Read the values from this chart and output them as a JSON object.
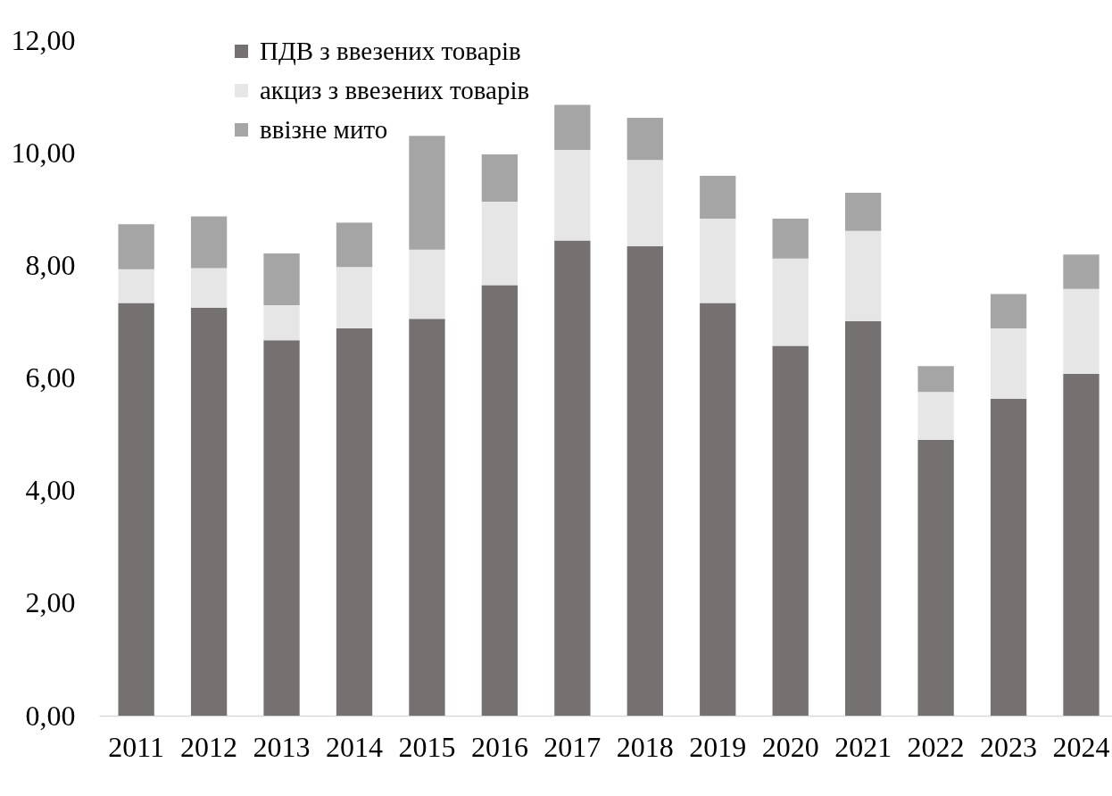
{
  "chart_data": {
    "type": "bar",
    "stacked": true,
    "categories": [
      "2011",
      "2012",
      "2013",
      "2014",
      "2015",
      "2016",
      "2017",
      "2018",
      "2019",
      "2020",
      "2021",
      "2022",
      "2023",
      "2024"
    ],
    "series": [
      {
        "name": "ПДВ з ввезених товарів",
        "color": "#767171",
        "values": [
          7.33,
          7.25,
          6.67,
          6.88,
          7.05,
          7.65,
          8.44,
          8.34,
          7.33,
          6.57,
          7.01,
          4.9,
          5.63,
          6.07
        ]
      },
      {
        "name": "акциз з ввезених товарів",
        "color": "#e7e6e6",
        "values": [
          0.6,
          0.7,
          0.62,
          1.09,
          1.23,
          1.48,
          1.61,
          1.53,
          1.5,
          1.55,
          1.6,
          0.85,
          1.25,
          1.51
        ]
      },
      {
        "name": "ввізне мито",
        "color": "#a5a5a5",
        "values": [
          0.8,
          0.92,
          0.92,
          0.79,
          2.02,
          0.84,
          0.8,
          0.75,
          0.76,
          0.71,
          0.68,
          0.46,
          0.61,
          0.61
        ]
      }
    ],
    "ylim": [
      0,
      12
    ],
    "yticks": [
      {
        "value": 0,
        "label": "0,00"
      },
      {
        "value": 2,
        "label": "2,00"
      },
      {
        "value": 4,
        "label": "4,00"
      },
      {
        "value": 6,
        "label": "6,00"
      },
      {
        "value": 8,
        "label": "8,00"
      },
      {
        "value": 10,
        "label": "10,00"
      },
      {
        "value": 12,
        "label": "12,00"
      }
    ],
    "legend": "top left"
  }
}
